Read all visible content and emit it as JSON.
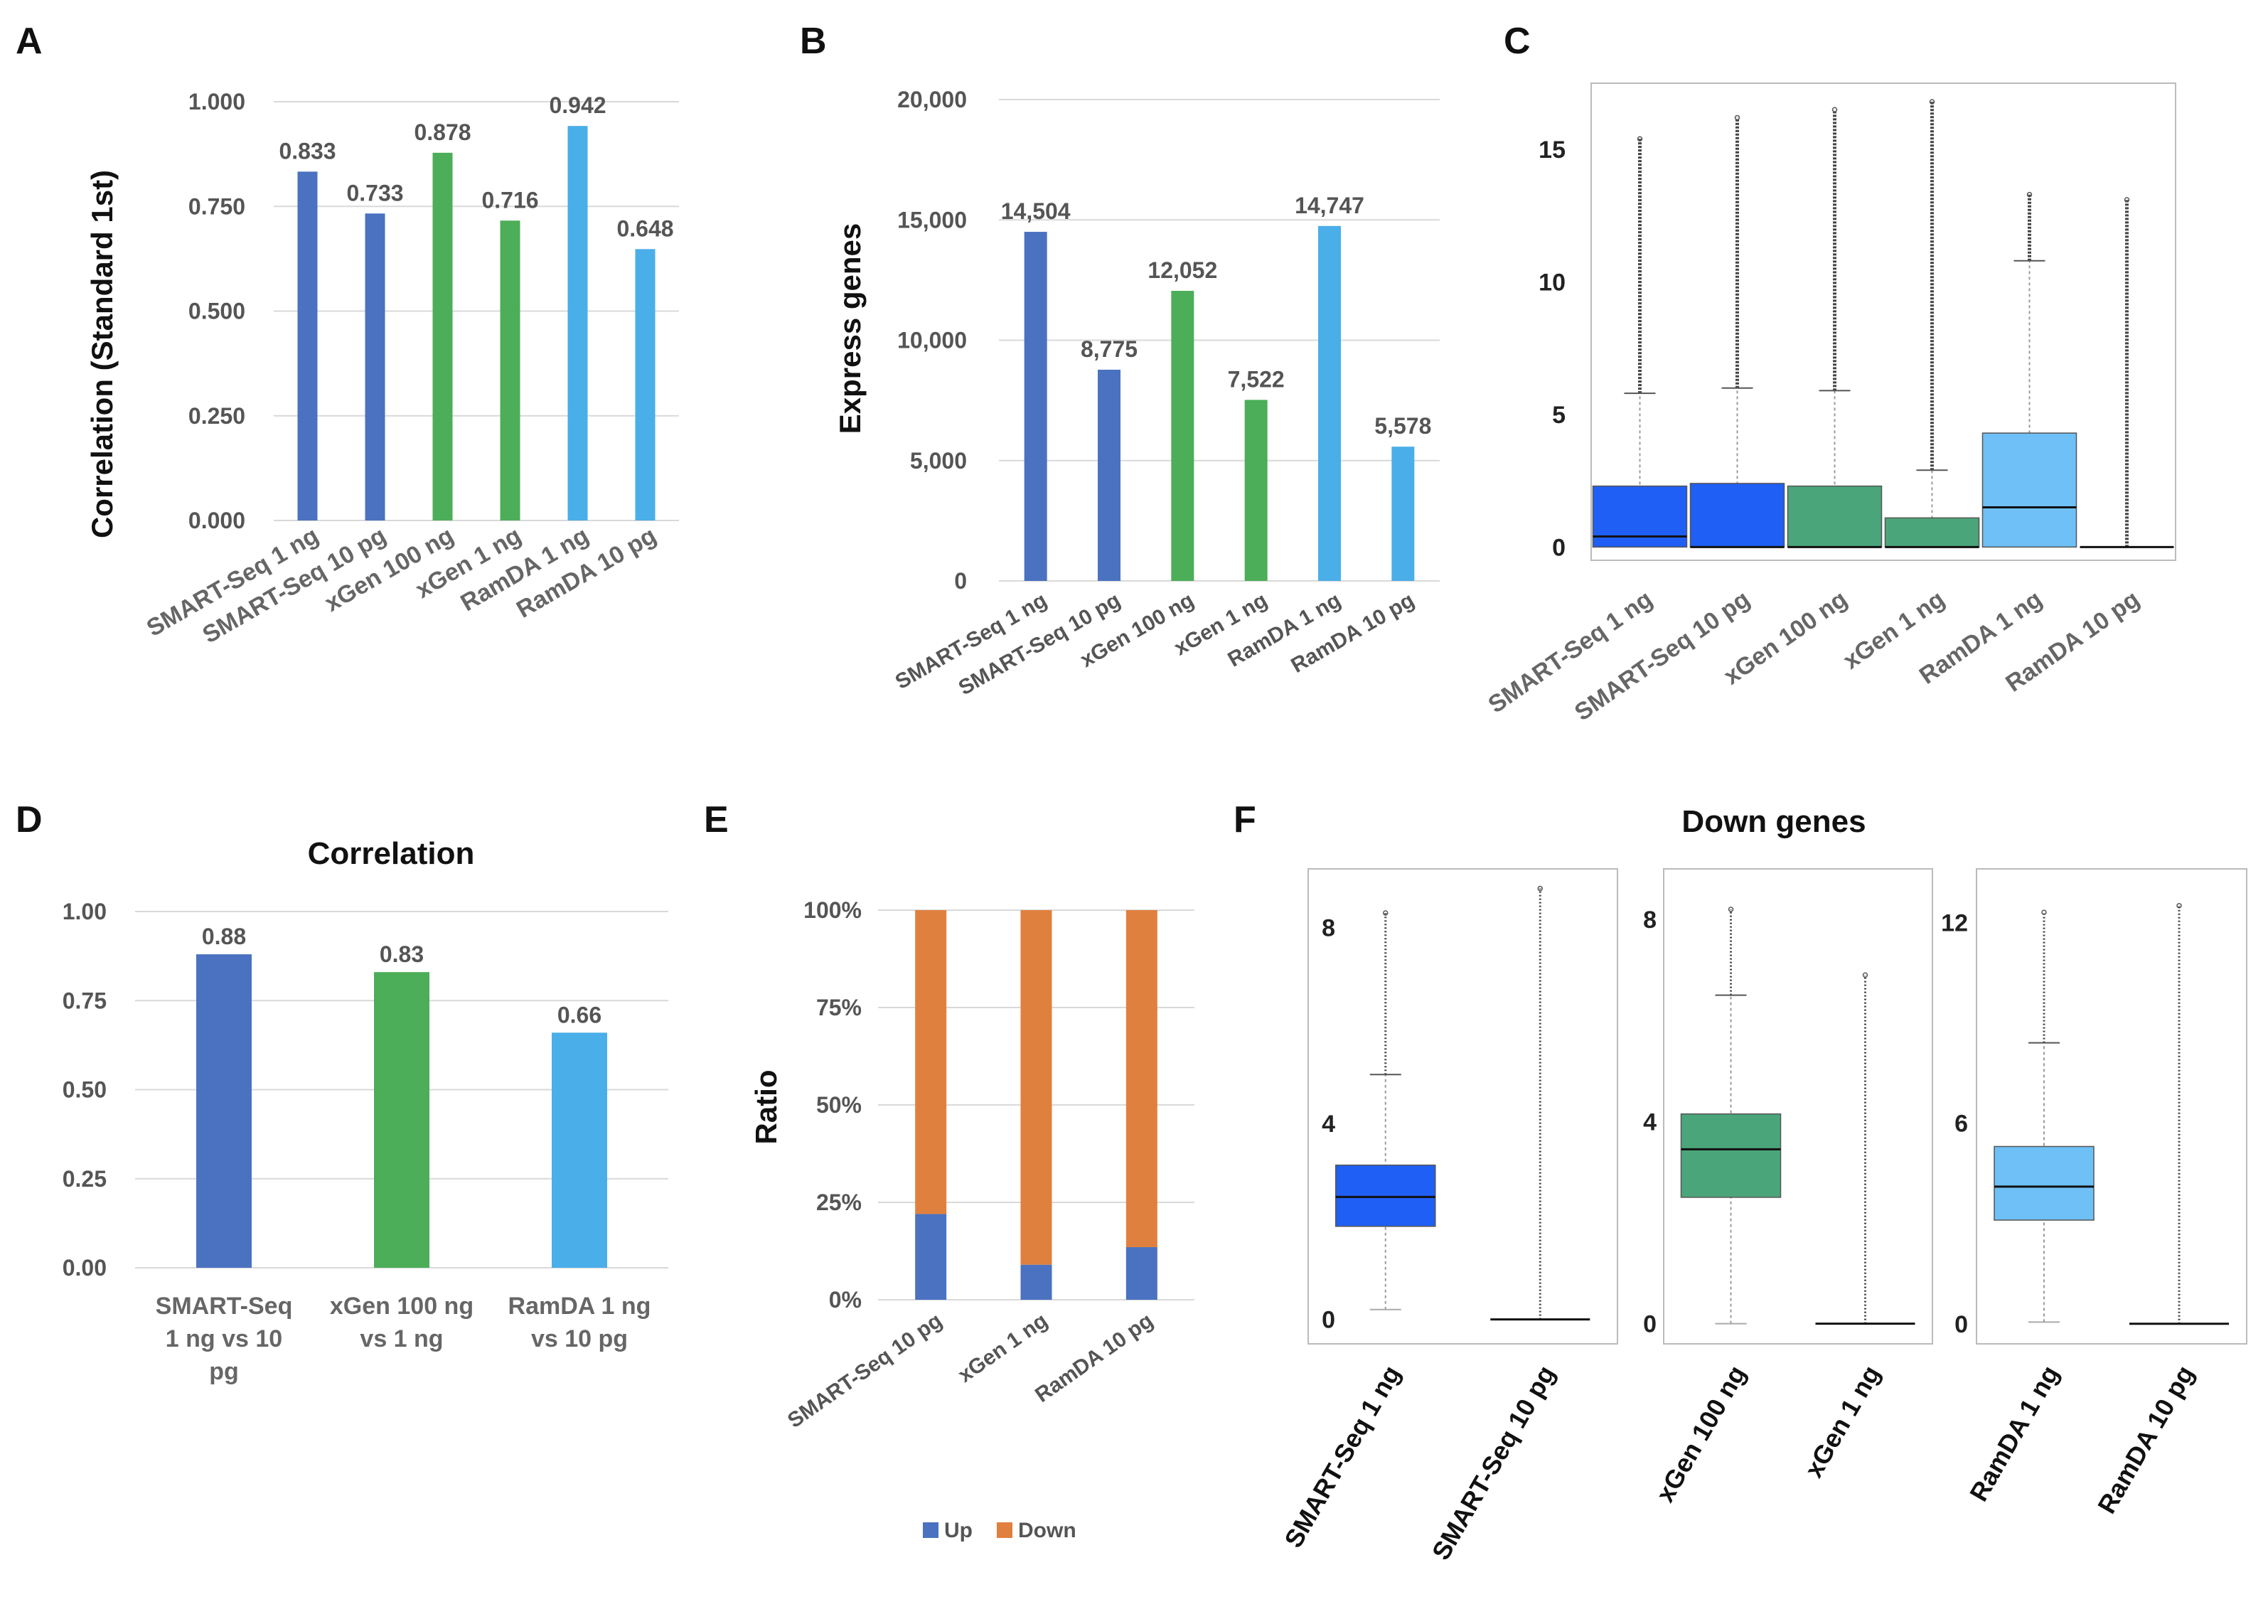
{
  "colors": {
    "blue_dark": "#4a72c0",
    "green": "#4cae58",
    "blue_light": "#4aaee8",
    "box_blue": "#1f5ff5",
    "box_green": "#4aa67a",
    "box_light": "#6ec0f7",
    "orange": "#e0803f",
    "grid": "#d9d9d9"
  },
  "chart_data": [
    {
      "id": "A",
      "panel_label": "A",
      "type": "bar",
      "ylabel": "Correlation (Standard 1st)",
      "ylim": [
        0,
        1
      ],
      "yticks": [
        "0.000",
        "0.250",
        "0.500",
        "0.750",
        "1.000"
      ],
      "categories": [
        "SMART-Seq 1 ng",
        "SMART-Seq 10 pg",
        "xGen 100 ng",
        "xGen 1 ng",
        "RamDA 1 ng",
        "RamDA 10 pg"
      ],
      "values": [
        0.833,
        0.733,
        0.878,
        0.716,
        0.942,
        0.648
      ],
      "value_labels": [
        "0.833",
        "0.733",
        "0.878",
        "0.716",
        "0.942",
        "0.648"
      ],
      "bar_colors": [
        "#4a72c0",
        "#4a72c0",
        "#4cae58",
        "#4cae58",
        "#4aaee8",
        "#4aaee8"
      ]
    },
    {
      "id": "B",
      "panel_label": "B",
      "type": "bar",
      "ylabel": "Express genes",
      "ylim": [
        0,
        20000
      ],
      "yticks": [
        "0",
        "5,000",
        "10,000",
        "15,000",
        "20,000"
      ],
      "categories": [
        "SMART-Seq 1 ng",
        "SMART-Seq 10 pg",
        "xGen 100 ng",
        "xGen 1 ng",
        "RamDA 1 ng",
        "RamDA 10 pg"
      ],
      "values": [
        14504,
        8775,
        12052,
        7522,
        14747,
        5578
      ],
      "value_labels": [
        "14,504",
        "8,775",
        "12,052",
        "7,522",
        "14,747",
        "5,578"
      ],
      "bar_colors": [
        "#4a72c0",
        "#4a72c0",
        "#4cae58",
        "#4cae58",
        "#4aaee8",
        "#4aaee8"
      ]
    },
    {
      "id": "C",
      "panel_label": "C",
      "type": "box",
      "ylim": [
        -0.5,
        17.5
      ],
      "yticks": [
        "0",
        "5",
        "10",
        "15"
      ],
      "ytick_values": [
        0,
        5,
        10,
        15
      ],
      "categories": [
        "SMART-Seq 1 ng",
        "SMART-Seq 10 pg",
        "xGen 100 ng",
        "xGen 1 ng",
        "RamDA 1 ng",
        "RamDA 10 pg"
      ],
      "boxes": [
        {
          "q1": 0,
          "median": 0.4,
          "q3": 2.3,
          "whisker_low": 0,
          "whisker_high": 5.8,
          "outlier_max": 15.4,
          "color": "#1f5ff5"
        },
        {
          "q1": 0,
          "median": 0,
          "q3": 2.4,
          "whisker_low": 0,
          "whisker_high": 6.0,
          "outlier_max": 16.2,
          "color": "#1f5ff5"
        },
        {
          "q1": 0,
          "median": 0,
          "q3": 2.3,
          "whisker_low": 0,
          "whisker_high": 5.9,
          "outlier_max": 16.5,
          "color": "#4aa67a"
        },
        {
          "q1": 0,
          "median": 0,
          "q3": 1.1,
          "whisker_low": 0,
          "whisker_high": 2.9,
          "outlier_max": 16.8,
          "color": "#4aa67a"
        },
        {
          "q1": 0,
          "median": 1.5,
          "q3": 4.3,
          "whisker_low": 0,
          "whisker_high": 10.8,
          "outlier_max": 13.3,
          "color": "#6ec0f7"
        },
        {
          "q1": 0,
          "median": 0,
          "q3": 0,
          "whisker_low": 0,
          "whisker_high": 0,
          "outlier_max": 13.1,
          "color": "#6ec0f7"
        }
      ]
    },
    {
      "id": "D",
      "panel_label": "D",
      "type": "bar",
      "title": "Correlation",
      "ylim": [
        0,
        1
      ],
      "yticks": [
        "0.00",
        "0.25",
        "0.50",
        "0.75",
        "1.00"
      ],
      "categories": [
        [
          "SMART-Seq",
          "1 ng vs 10",
          "pg"
        ],
        [
          "xGen 100 ng",
          "vs 1 ng"
        ],
        [
          "RamDA 1 ng",
          "vs 10 pg"
        ]
      ],
      "values": [
        0.88,
        0.83,
        0.66
      ],
      "value_labels": [
        "0.88",
        "0.83",
        "0.66"
      ],
      "bar_colors": [
        "#4a72c0",
        "#4cae58",
        "#4aaee8"
      ]
    },
    {
      "id": "E",
      "panel_label": "E",
      "type": "stacked_bar",
      "ylabel": "Ratio",
      "ylim": [
        0,
        1
      ],
      "yticks": [
        "0%",
        "25%",
        "50%",
        "75%",
        "100%"
      ],
      "categories": [
        "SMART-Seq 10 pg",
        "xGen 1 ng",
        "RamDA 10 pg"
      ],
      "series": [
        {
          "name": "Up",
          "values": [
            0.22,
            0.09,
            0.135
          ],
          "color": "#4a72c0"
        },
        {
          "name": "Down",
          "values": [
            0.78,
            0.91,
            0.865
          ],
          "color": "#e0803f"
        }
      ],
      "legend_position": "bottom"
    },
    {
      "id": "F",
      "panel_label": "F",
      "type": "box",
      "title": "Down genes",
      "subplots": [
        {
          "ylim": [
            -0.5,
            9.2
          ],
          "yticks": [
            "0",
            "4",
            "8"
          ],
          "ytick_values": [
            0,
            4,
            8
          ],
          "categories": [
            "SMART-Seq 1 ng",
            "SMART-Seq 10 pg"
          ],
          "boxes": [
            {
              "q1": 1.9,
              "median": 2.5,
              "q3": 3.15,
              "whisker_low": 0.2,
              "whisker_high": 5.0,
              "outlier_max": 8.3,
              "color": "#1f5ff5"
            },
            {
              "q1": 0,
              "median": 0,
              "q3": 0,
              "whisker_low": 0,
              "whisker_high": 0,
              "outlier_max": 8.8,
              "color": "#1f5ff5"
            }
          ]
        },
        {
          "ylim": [
            -0.4,
            9.0
          ],
          "yticks": [
            "0",
            "4",
            "8"
          ],
          "ytick_values": [
            0,
            4,
            8
          ],
          "categories": [
            "xGen 100 ng",
            "xGen 1 ng"
          ],
          "boxes": [
            {
              "q1": 2.5,
              "median": 3.45,
              "q3": 4.15,
              "whisker_low": 0,
              "whisker_high": 6.5,
              "outlier_max": 8.2,
              "color": "#4aa67a"
            },
            {
              "q1": 0,
              "median": 0,
              "q3": 0,
              "whisker_low": 0,
              "whisker_high": 0,
              "outlier_max": 6.9,
              "color": "#4aa67a"
            }
          ]
        },
        {
          "ylim": [
            -0.6,
            13.6
          ],
          "yticks": [
            "0",
            "6",
            "12"
          ],
          "ytick_values": [
            0,
            6,
            12
          ],
          "categories": [
            "RamDA 1 ng",
            "RamDA 10 pg"
          ],
          "boxes": [
            {
              "q1": 3.1,
              "median": 4.1,
              "q3": 5.3,
              "whisker_low": 0.05,
              "whisker_high": 8.4,
              "outlier_max": 12.3,
              "color": "#6ec0f7"
            },
            {
              "q1": 0,
              "median": 0,
              "q3": 0,
              "whisker_low": 0,
              "whisker_high": 0,
              "outlier_max": 12.5,
              "color": "#6ec0f7"
            }
          ]
        }
      ]
    }
  ]
}
